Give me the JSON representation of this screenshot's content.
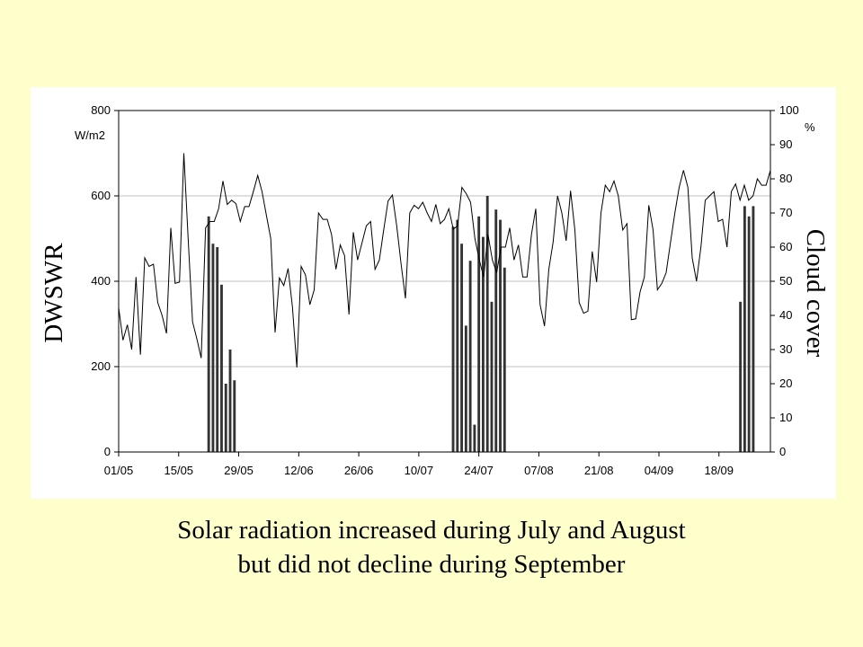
{
  "colors": {
    "background": "#ffffcc",
    "panel": "#ffffff",
    "line": "#000000",
    "bars": "#333333",
    "grid": "#c0c0c0"
  },
  "caption": {
    "line1": "Solar radiation increased during July and August",
    "line2": "but did not decline during September"
  },
  "chart_data": {
    "type": "bar+line",
    "title": "",
    "x_start": "01/05",
    "x_days": 152,
    "x_ticks": [
      {
        "label": "01/05",
        "day": 0
      },
      {
        "label": "15/05",
        "day": 14
      },
      {
        "label": "29/05",
        "day": 28
      },
      {
        "label": "12/06",
        "day": 42
      },
      {
        "label": "26/06",
        "day": 56
      },
      {
        "label": "10/07",
        "day": 70
      },
      {
        "label": "24/07",
        "day": 84
      },
      {
        "label": "07/08",
        "day": 98
      },
      {
        "label": "21/08",
        "day": 112
      },
      {
        "label": "04/09",
        "day": 126
      },
      {
        "label": "18/09",
        "day": 140
      }
    ],
    "y_left": {
      "label": "DWSWR",
      "unit": "W/m2",
      "ylim": [
        0,
        800
      ],
      "ticks": [
        0,
        200,
        400,
        600,
        800
      ]
    },
    "y_right": {
      "label": "Cloud cover",
      "unit": "%",
      "ylim": [
        0,
        100
      ],
      "ticks": [
        0,
        10,
        20,
        30,
        40,
        50,
        60,
        70,
        80,
        90,
        100
      ]
    },
    "grid": "horizontal",
    "line_series": {
      "name": "DWSWR",
      "axis": "left",
      "values": [
        338,
        262,
        298,
        240,
        410,
        228,
        455,
        435,
        440,
        350,
        320,
        278,
        525,
        395,
        398,
        700,
        500,
        305,
        265,
        220,
        525,
        540,
        540,
        570,
        635,
        580,
        590,
        582,
        540,
        575,
        575,
        610,
        648,
        610,
        555,
        500,
        280,
        408,
        390,
        430,
        340,
        198,
        435,
        415,
        345,
        380,
        560,
        545,
        545,
        510,
        428,
        485,
        460,
        322,
        515,
        450,
        490,
        530,
        540,
        428,
        450,
        520,
        588,
        602,
        530,
        440,
        360,
        560,
        578,
        570,
        585,
        560,
        540,
        580,
        535,
        545,
        570,
        522,
        530,
        620,
        605,
        585,
        500,
        450,
        410,
        510,
        450,
        420,
        480,
        480,
        525,
        450,
        485,
        410,
        410,
        510,
        570,
        345,
        295,
        428,
        492,
        600,
        560,
        495,
        612,
        520,
        350,
        325,
        330,
        470,
        398,
        560,
        625,
        610,
        635,
        600,
        520,
        535,
        310,
        312,
        375,
        410,
        578,
        520,
        380,
        395,
        420,
        490,
        560,
        620,
        660,
        620,
        455,
        400,
        480,
        590,
        600,
        610,
        540,
        545,
        480,
        610,
        628,
        590,
        625,
        590,
        600,
        640,
        625,
        625,
        660
      ]
    },
    "bar_series": {
      "name": "Cloud cover",
      "axis": "right",
      "bars": [
        {
          "day": 21,
          "value": 69
        },
        {
          "day": 22,
          "value": 61
        },
        {
          "day": 23,
          "value": 60
        },
        {
          "day": 24,
          "value": 49
        },
        {
          "day": 25,
          "value": 20
        },
        {
          "day": 26,
          "value": 30
        },
        {
          "day": 27,
          "value": 21
        },
        {
          "day": 78,
          "value": 66
        },
        {
          "day": 79,
          "value": 68
        },
        {
          "day": 80,
          "value": 61
        },
        {
          "day": 81,
          "value": 37
        },
        {
          "day": 82,
          "value": 56
        },
        {
          "day": 83,
          "value": 8
        },
        {
          "day": 84,
          "value": 69
        },
        {
          "day": 85,
          "value": 63
        },
        {
          "day": 86,
          "value": 75
        },
        {
          "day": 87,
          "value": 44
        },
        {
          "day": 88,
          "value": 71
        },
        {
          "day": 89,
          "value": 68
        },
        {
          "day": 90,
          "value": 54
        },
        {
          "day": 145,
          "value": 44
        },
        {
          "day": 146,
          "value": 72
        },
        {
          "day": 147,
          "value": 69
        },
        {
          "day": 148,
          "value": 72
        }
      ]
    }
  }
}
